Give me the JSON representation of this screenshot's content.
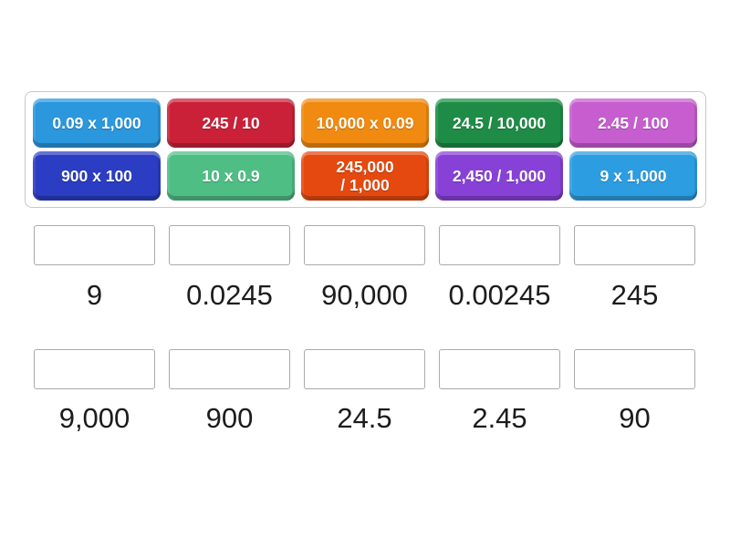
{
  "activity": {
    "tiles": [
      {
        "label": "0.09 x 1,000",
        "color": "#2b97dd"
      },
      {
        "label": "245 / 10",
        "color": "#ca2138"
      },
      {
        "label": "10,000 x 0.09",
        "color": "#f08a10"
      },
      {
        "label": "24.5 / 10,000",
        "color": "#1e8c46"
      },
      {
        "label": "2.45 / 100",
        "color": "#c65ecf"
      },
      {
        "label": "900 x 100",
        "color": "#2a3dc3"
      },
      {
        "label": "10 x 0.9",
        "color": "#4fbe85"
      },
      {
        "label": "245,000\n/ 1,000",
        "color": "#e6490f"
      },
      {
        "label": "2,450 / 1,000",
        "color": "#8841d6"
      },
      {
        "label": "9 x 1,000",
        "color": "#2d9de2"
      }
    ],
    "answers": {
      "row1": [
        "9",
        "0.0245",
        "90,000",
        "0.00245",
        "245"
      ],
      "row2": [
        "9,000",
        "900",
        "24.5",
        "2.45",
        "90"
      ]
    }
  }
}
